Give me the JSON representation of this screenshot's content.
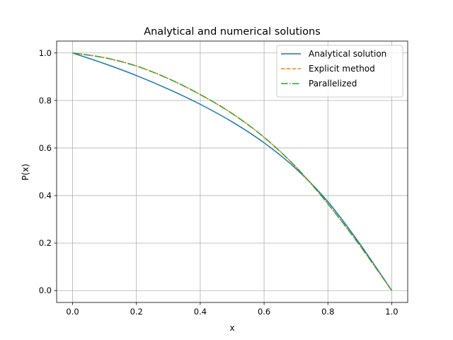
{
  "chart_data": {
    "type": "line",
    "title": "Analytical and numerical solutions",
    "xlabel": "x",
    "ylabel": "P(x)",
    "xlim": [
      -0.05,
      1.05
    ],
    "ylim": [
      -0.05,
      1.05
    ],
    "xticks": [
      0.0,
      0.2,
      0.4,
      0.6,
      0.8,
      1.0
    ],
    "xtick_labels": [
      "0.0",
      "0.2",
      "0.4",
      "0.6",
      "0.8",
      "1.0"
    ],
    "yticks": [
      0.0,
      0.2,
      0.4,
      0.6,
      0.8,
      1.0
    ],
    "ytick_labels": [
      "0.0",
      "0.2",
      "0.4",
      "0.6",
      "0.8",
      "1.0"
    ],
    "grid": true,
    "legend_position": "top-right",
    "series": [
      {
        "name": "Analytical solution",
        "color": "#1f77b4",
        "style": "solid",
        "x": [
          0.0,
          0.1,
          0.2,
          0.3,
          0.4,
          0.5,
          0.6,
          0.7,
          0.8,
          0.9,
          1.0
        ],
        "y": [
          1.0,
          0.955,
          0.905,
          0.848,
          0.784,
          0.71,
          0.622,
          0.513,
          0.374,
          0.197,
          0.0
        ]
      },
      {
        "name": "Explicit method",
        "color": "#ff7f0e",
        "style": "dashed",
        "x": [
          0.0,
          0.1,
          0.2,
          0.3,
          0.4,
          0.5,
          0.6,
          0.7,
          0.8,
          0.9,
          1.0
        ],
        "y": [
          1.0,
          0.98,
          0.945,
          0.892,
          0.825,
          0.745,
          0.645,
          0.52,
          0.365,
          0.19,
          0.0
        ]
      },
      {
        "name": "Parallelized",
        "color": "#2ca02c",
        "style": "dashdot",
        "x": [
          0.0,
          0.1,
          0.2,
          0.3,
          0.4,
          0.5,
          0.6,
          0.7,
          0.8,
          0.9,
          1.0
        ],
        "y": [
          1.0,
          0.98,
          0.945,
          0.892,
          0.825,
          0.745,
          0.645,
          0.52,
          0.365,
          0.19,
          0.0
        ]
      }
    ]
  }
}
